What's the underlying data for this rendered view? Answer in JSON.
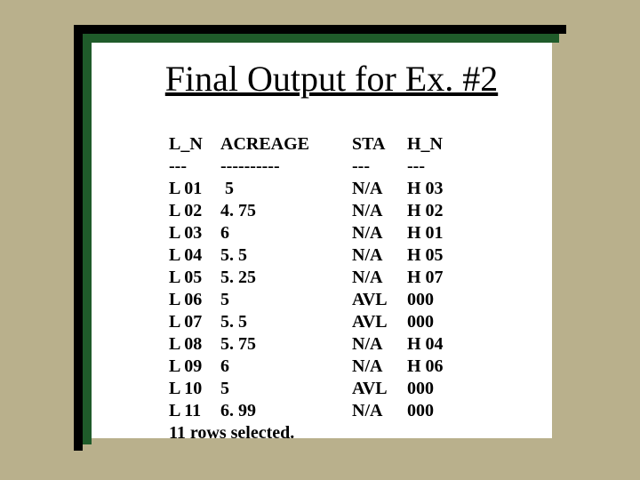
{
  "title": "Final Output for Ex. #2",
  "frame": {
    "outer_bar_color": "#000000",
    "mid_bar_color": "#1f5b2a",
    "panel_color": "#ffffff",
    "background": "#b9b08c"
  },
  "table": {
    "headers": {
      "c1": "L_N",
      "c2": "ACREAGE",
      "c3": "STA",
      "c4": "H_N"
    },
    "divider": {
      "c1": "---",
      "c2": "----------",
      "c3": "---",
      "c4": "---"
    },
    "rows": [
      {
        "c1": "L 01",
        "c2": " 5",
        "c3": "N/A",
        "c4": "H 03"
      },
      {
        "c1": "L 02",
        "c2": "4. 75",
        "c3": "N/A",
        "c4": "H 02"
      },
      {
        "c1": "L 03",
        "c2": "6",
        "c3": "N/A",
        "c4": "H 01"
      },
      {
        "c1": "L 04",
        "c2": "5. 5",
        "c3": "N/A",
        "c4": "H 05"
      },
      {
        "c1": "L 05",
        "c2": "5. 25",
        "c3": "N/A",
        "c4": "H 07"
      },
      {
        "c1": "L 06",
        "c2": "5",
        "c3": "AVL",
        "c4": "000"
      },
      {
        "c1": "L 07",
        "c2": "5. 5",
        "c3": "AVL",
        "c4": "000"
      },
      {
        "c1": "L 08",
        "c2": "5. 75",
        "c3": "N/A",
        "c4": "H 04"
      },
      {
        "c1": "L 09",
        "c2": "6",
        "c3": "N/A",
        "c4": "H 06"
      },
      {
        "c1": "L 10",
        "c2": "5",
        "c3": "AVL",
        "c4": "000"
      },
      {
        "c1": "L 11",
        "c2": "6. 99",
        "c3": "N/A",
        "c4": "000"
      }
    ],
    "footer": "11 rows selected."
  }
}
